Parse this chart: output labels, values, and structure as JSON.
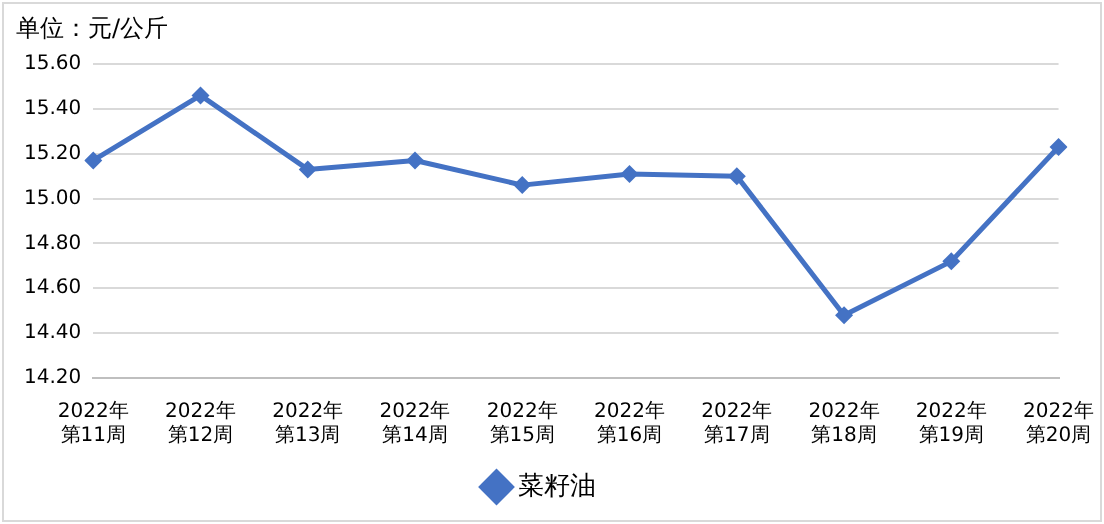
{
  "chart_data": {
    "type": "line",
    "ylabel": "单位：元/公斤",
    "categories": [
      "2022年第11周",
      "2022年第12周",
      "2022年第13周",
      "2022年第14周",
      "2022年第15周",
      "2022年第16周",
      "2022年第17周",
      "2022年第18周",
      "2022年第19周",
      "2022年第20周"
    ],
    "series": [
      {
        "name": "菜籽油",
        "color": "#4472c4",
        "values": [
          15.17,
          15.46,
          15.13,
          15.17,
          15.06,
          15.11,
          15.1,
          14.48,
          14.72,
          15.23
        ]
      }
    ],
    "ylim": [
      14.2,
      15.6
    ],
    "yticks": [
      {
        "value": 14.2,
        "label": "14.20"
      },
      {
        "value": 14.4,
        "label": "14.40"
      },
      {
        "value": 14.6,
        "label": "14.60"
      },
      {
        "value": 14.8,
        "label": "14.80"
      },
      {
        "value": 15.0,
        "label": "15.00"
      },
      {
        "value": 15.2,
        "label": "15.20"
      },
      {
        "value": 15.4,
        "label": "15.40"
      },
      {
        "value": 15.6,
        "label": "15.60"
      }
    ],
    "grid": "y",
    "legend": "bottom",
    "marker": "diamond",
    "line_style": "solid"
  }
}
